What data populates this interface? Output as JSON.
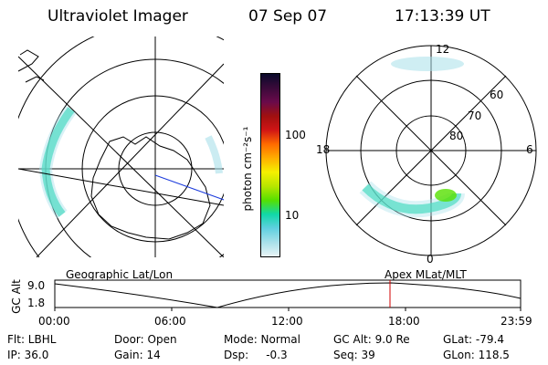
{
  "header": {
    "instrument": "Ultraviolet Imager",
    "date": "07 Sep 07",
    "time": "17:13:39 UT"
  },
  "colorbar": {
    "unit_label": "photon cm⁻²s⁻¹",
    "ticks": [
      "100",
      "10"
    ],
    "colors": [
      "#0a0a2a",
      "#3a0a3a",
      "#6a0a4a",
      "#a01010",
      "#d01515",
      "#ff6a00",
      "#ffae00",
      "#f5f000",
      "#b8e600",
      "#56e000",
      "#10d8a8",
      "#60d0e0",
      "#a8e0ea",
      "#e8f4f6"
    ]
  },
  "polar_plot": {
    "mlt_labels": [
      "12",
      "18",
      "6",
      "0"
    ],
    "mlat_labels": [
      "60",
      "70",
      "80"
    ]
  },
  "timeline": {
    "left_title": "Geographic Lat/Lon",
    "right_title": "Apex MLat/MLT",
    "axis_label": "GC Alt",
    "y_ticks": [
      "9.0",
      "1.8"
    ],
    "x_ticks": [
      "00:00",
      "06:00",
      "12:00",
      "18:00",
      "23:59"
    ],
    "marker_color": "#d00000"
  },
  "info": {
    "filter": "Flt: LBHL",
    "ip": "IP: 36.0",
    "door": "Door: Open",
    "gain": "Gain: 14",
    "mode": "Mode: Normal",
    "dsp": "Dsp:     -0.3",
    "gc_alt": "GC Alt: 9.0 Re",
    "seq": "Seq: 39",
    "glat": "GLat: -79.4",
    "glon": "GLon: 118.5"
  }
}
